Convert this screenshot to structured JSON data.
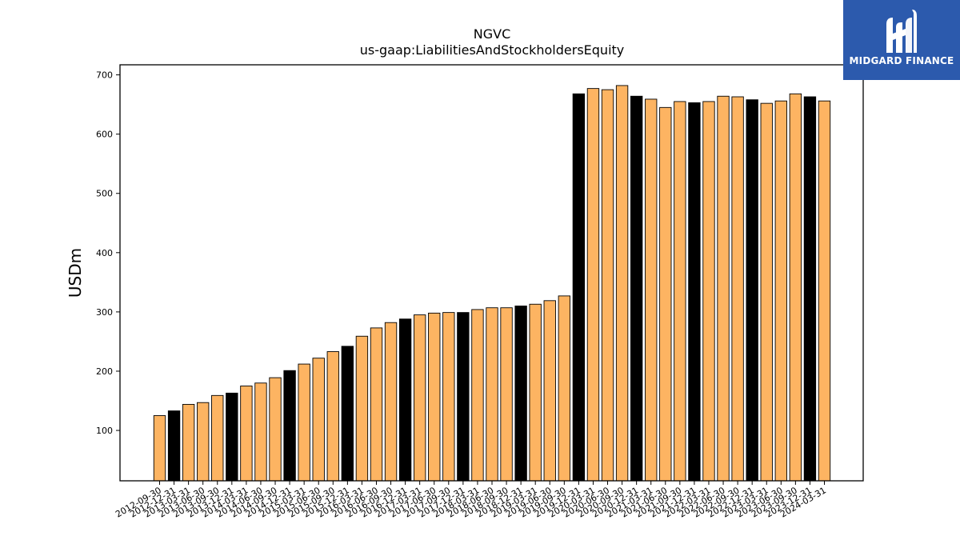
{
  "chart_data": {
    "type": "bar",
    "title": "NGVC",
    "subtitle": "us-gaap:LiabilitiesAndStockholdersEquity",
    "ylabel": "USDm",
    "xlabel": "",
    "ylim": [
      15,
      717
    ],
    "yticks": [
      100,
      200,
      300,
      400,
      500,
      600,
      700
    ],
    "grid": false,
    "categories": [
      "2012-09-30",
      "2012-12-31",
      "2013-03-31",
      "2013-06-30",
      "2013-09-30",
      "2013-12-31",
      "2014-03-31",
      "2014-06-30",
      "2014-09-30",
      "2014-12-31",
      "2015-03-31",
      "2015-06-30",
      "2015-09-30",
      "2015-12-31",
      "2016-03-31",
      "2016-06-30",
      "2016-09-30",
      "2016-12-31",
      "2017-03-31",
      "2017-06-30",
      "2017-09-30",
      "2017-12-31",
      "2018-03-31",
      "2018-06-30",
      "2018-09-30",
      "2018-12-31",
      "2019-03-31",
      "2019-06-30",
      "2019-09-30",
      "2019-12-31",
      "2020-03-31",
      "2020-06-30",
      "2020-09-30",
      "2020-12-31",
      "2021-03-31",
      "2021-06-30",
      "2021-09-30",
      "2021-12-31",
      "2022-03-31",
      "2022-06-30",
      "2022-09-30",
      "2022-12-31",
      "2023-03-31",
      "2023-06-30",
      "2023-09-30",
      "2023-12-31",
      "2024-03-31"
    ],
    "values": [
      125,
      133,
      144,
      147,
      159,
      163,
      175,
      180,
      189,
      201,
      212,
      222,
      233,
      242,
      259,
      273,
      282,
      288,
      295,
      298,
      299,
      299,
      304,
      307,
      307,
      310,
      313,
      319,
      327,
      668,
      677,
      675,
      682,
      664,
      659,
      645,
      655,
      653,
      655,
      664,
      663,
      658,
      652,
      656,
      668,
      663,
      656
    ],
    "highlight": [
      false,
      true,
      false,
      false,
      false,
      true,
      false,
      false,
      false,
      true,
      false,
      false,
      false,
      true,
      false,
      false,
      false,
      true,
      false,
      false,
      false,
      true,
      false,
      false,
      false,
      true,
      false,
      false,
      false,
      true,
      false,
      false,
      false,
      true,
      false,
      false,
      false,
      true,
      false,
      false,
      false,
      true,
      false,
      false,
      false,
      true,
      false
    ],
    "colors": {
      "bar": "#fdb462",
      "highlight": "#000000",
      "edge": "#000000"
    }
  },
  "logo": {
    "text": "MIDGARD FINANCE",
    "background": "#2c5aad"
  }
}
